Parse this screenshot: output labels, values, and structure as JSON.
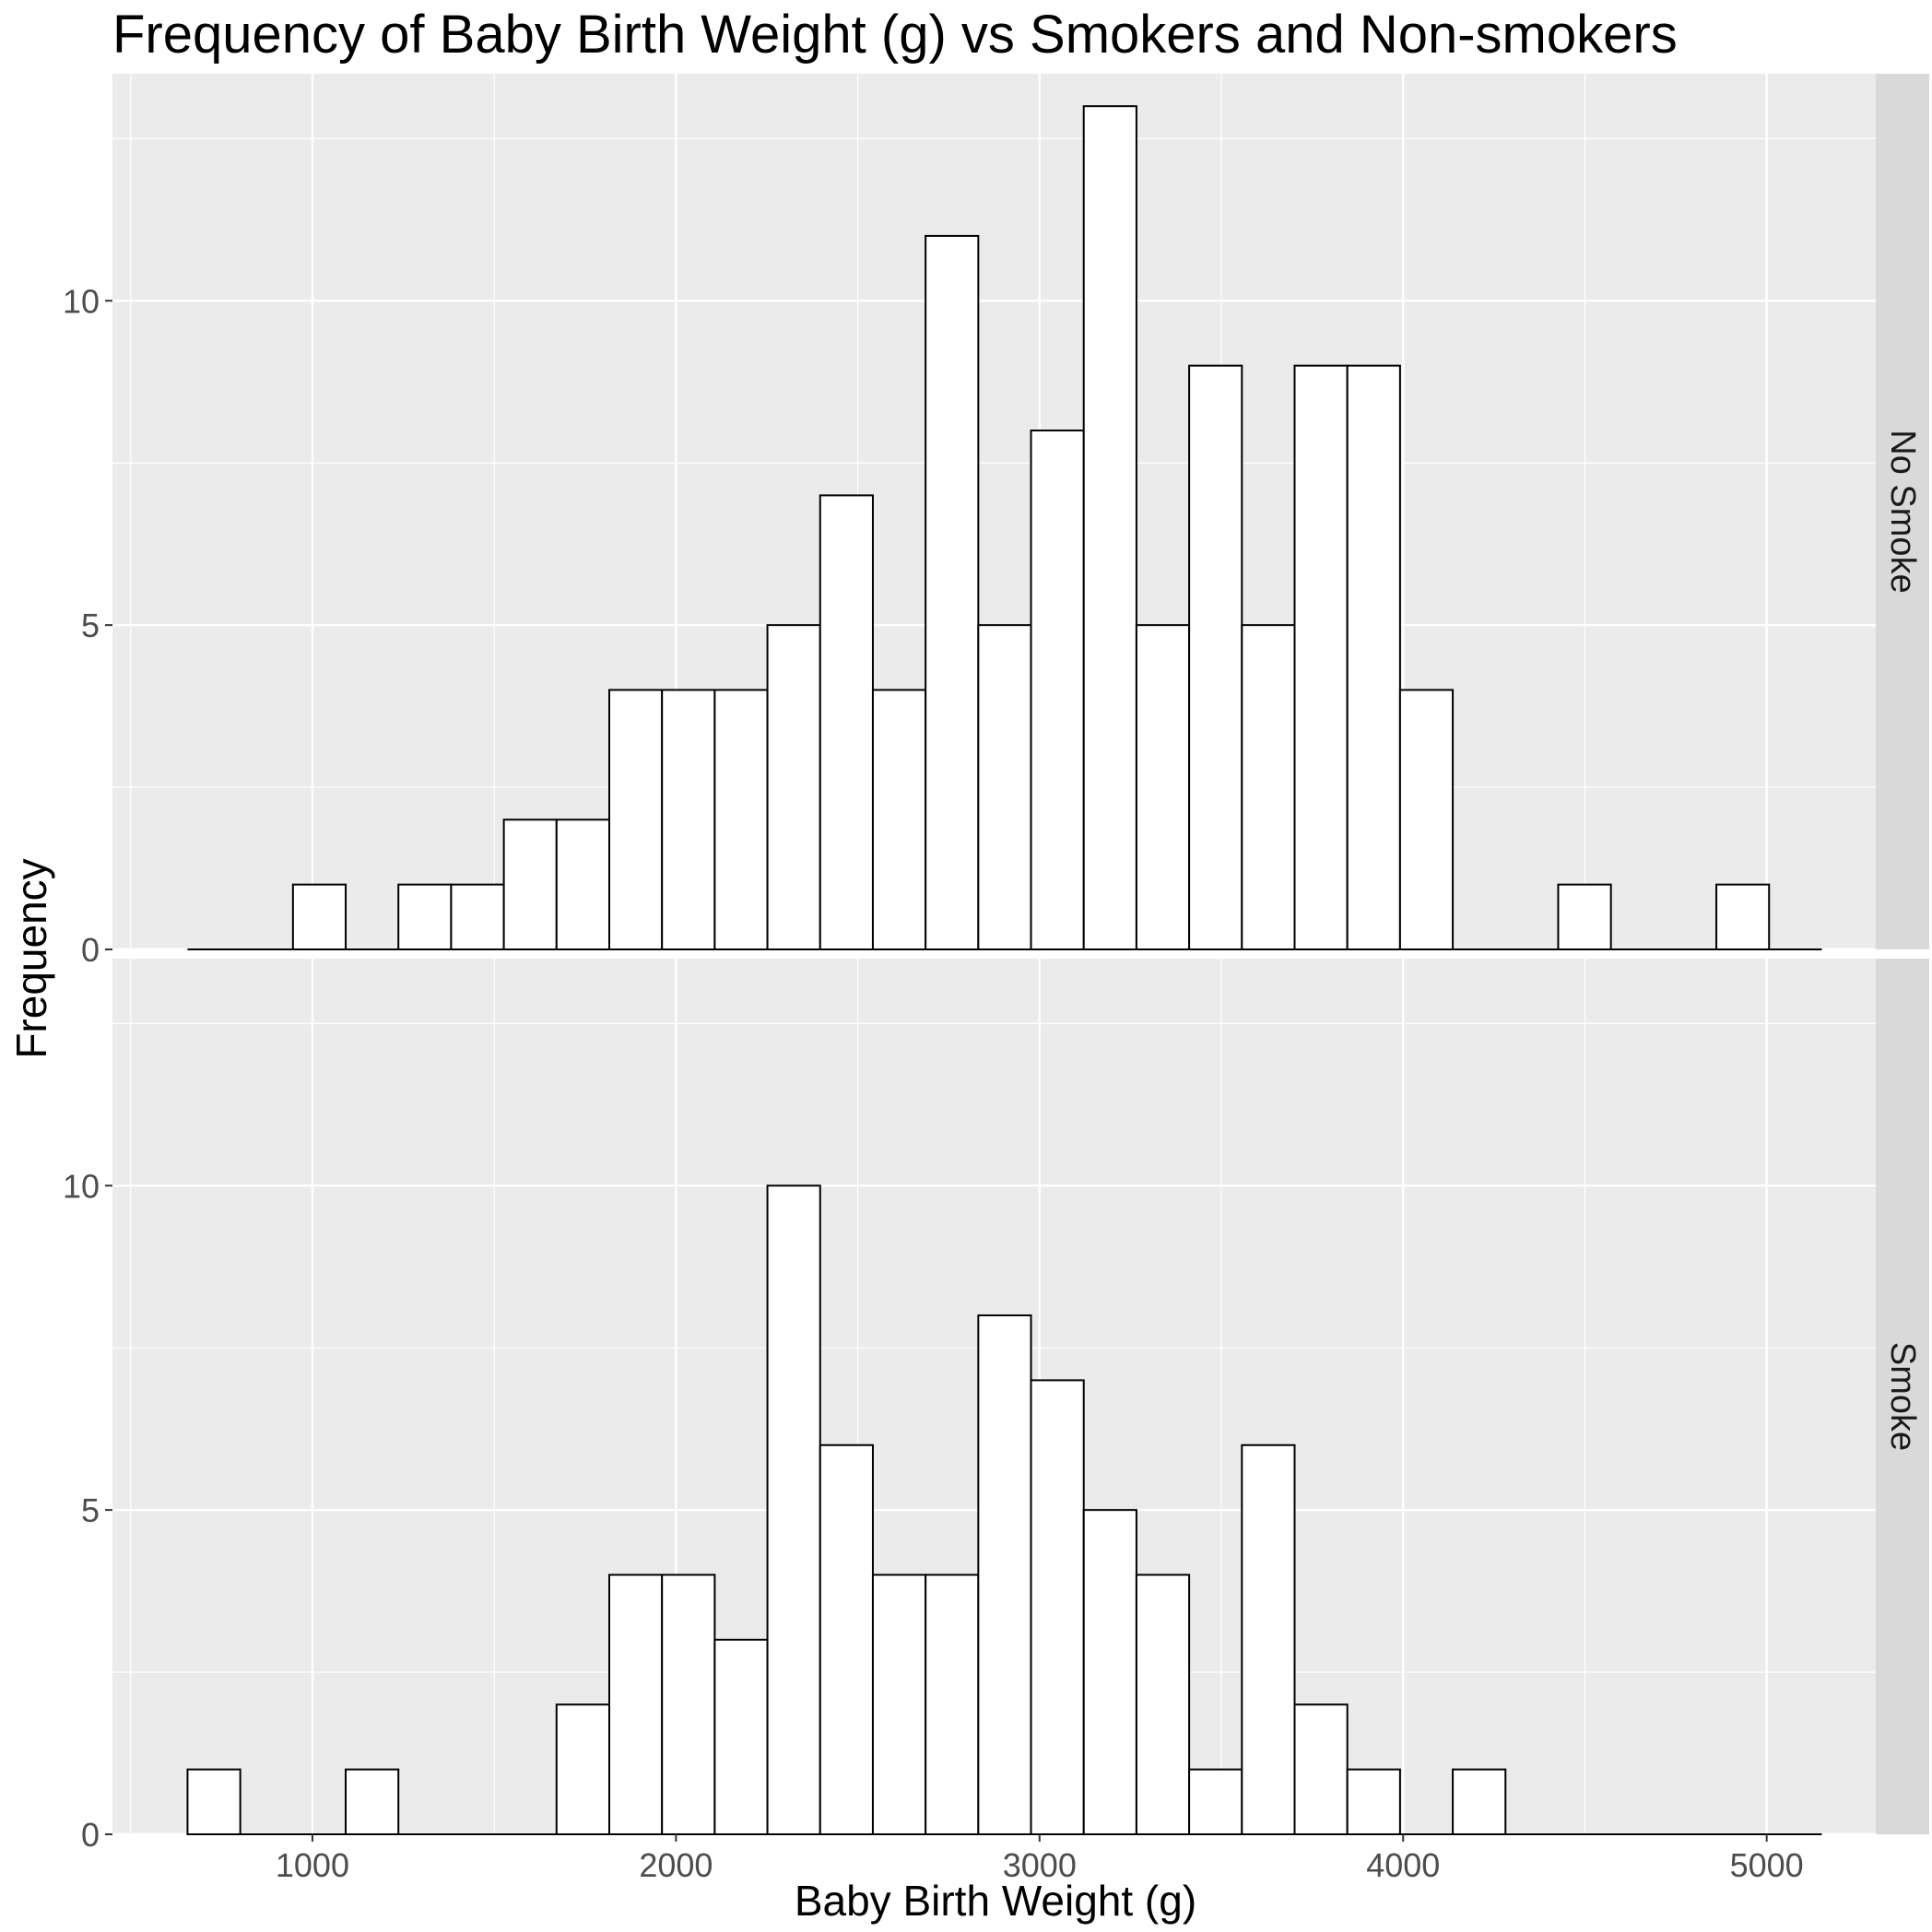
{
  "chart_data": {
    "type": "bar",
    "title": "Frequency of Baby Birth Weight (g) vs Smokers and Non-smokers",
    "xlabel": "Baby Birth Weight (g)",
    "ylabel": "Frequency",
    "bin_width_g": 145,
    "bin_centers_g": [
      729,
      874,
      1019,
      1164,
      1309,
      1454,
      1599,
      1744,
      1889,
      2034,
      2179,
      2324,
      2469,
      2614,
      2759,
      2904,
      3049,
      3194,
      3339,
      3484,
      3629,
      3774,
      3919,
      4064,
      4209,
      4354,
      4499,
      4644,
      4789,
      4934,
      5079
    ],
    "xlim": [
      450,
      5300
    ],
    "ylim": [
      0,
      13.5
    ],
    "x_ticks": [
      1000,
      2000,
      3000,
      4000,
      5000
    ],
    "y_ticks": [
      0,
      5,
      10
    ],
    "grid": true,
    "panels": [
      {
        "name": "No Smoke",
        "values": [
          0,
          0,
          1,
          0,
          1,
          1,
          2,
          2,
          4,
          4,
          4,
          5,
          7,
          4,
          11,
          5,
          8,
          13,
          5,
          9,
          5,
          9,
          9,
          4,
          0,
          0,
          1,
          0,
          0,
          1,
          0
        ]
      },
      {
        "name": "Smoke",
        "values": [
          1,
          0,
          0,
          1,
          0,
          0,
          0,
          2,
          4,
          4,
          3,
          10,
          6,
          4,
          4,
          8,
          7,
          5,
          4,
          1,
          6,
          2,
          1,
          0,
          1,
          0,
          0,
          0,
          0,
          0,
          0
        ]
      }
    ]
  }
}
